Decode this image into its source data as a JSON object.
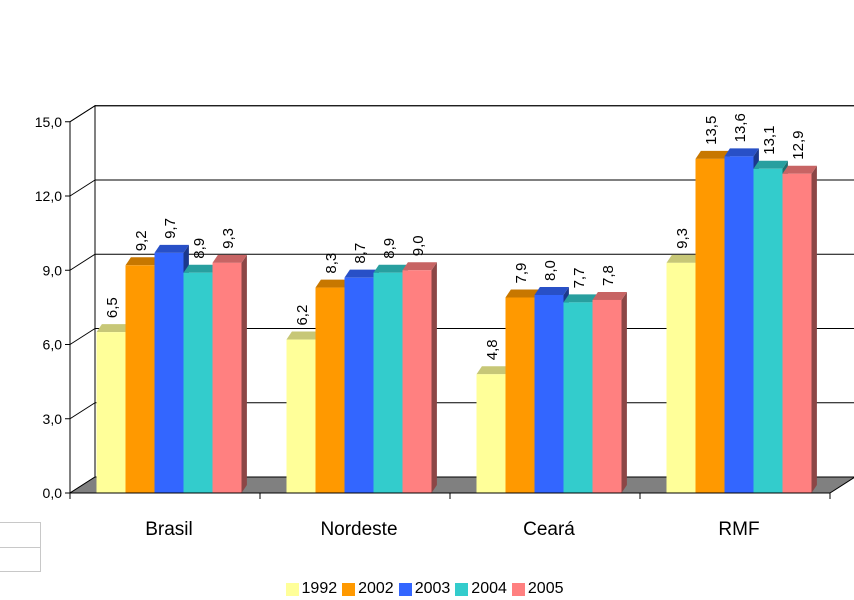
{
  "chart_data": {
    "type": "bar",
    "title": "",
    "xlabel": "",
    "ylabel": "",
    "categories": [
      "Brasil",
      "Nordeste",
      "Ceará",
      "RMF"
    ],
    "ylim": [
      0,
      15
    ],
    "yticks": [
      "0,0",
      "3,0",
      "6,0",
      "9,0",
      "12,0",
      "15,0"
    ],
    "grid": true,
    "legend_position": "bottom",
    "series": [
      {
        "name": "1992",
        "color": "#ffff99",
        "values": [
          6.5,
          6.2,
          4.8,
          9.3
        ],
        "labels": [
          "6,5",
          "6,2",
          "4,8",
          "9,3"
        ]
      },
      {
        "name": "2002",
        "color": "#ff9900",
        "values": [
          9.2,
          8.3,
          7.9,
          13.5
        ],
        "labels": [
          "9,2",
          "8,3",
          "7,9",
          "13,5"
        ]
      },
      {
        "name": "2003",
        "color": "#3366ff",
        "values": [
          9.7,
          8.7,
          8.0,
          13.6
        ],
        "labels": [
          "9,7",
          "8,7",
          "8,0",
          "13,6"
        ]
      },
      {
        "name": "2004",
        "color": "#33cccc",
        "values": [
          8.9,
          8.9,
          7.7,
          13.1
        ],
        "labels": [
          "8,9",
          "8,9",
          "7,7",
          "13,1"
        ]
      },
      {
        "name": "2005",
        "color": "#ff8080",
        "values": [
          9.3,
          9.0,
          7.8,
          12.9
        ],
        "labels": [
          "9,3",
          "9,0",
          "7,8",
          "12,9"
        ]
      }
    ]
  }
}
